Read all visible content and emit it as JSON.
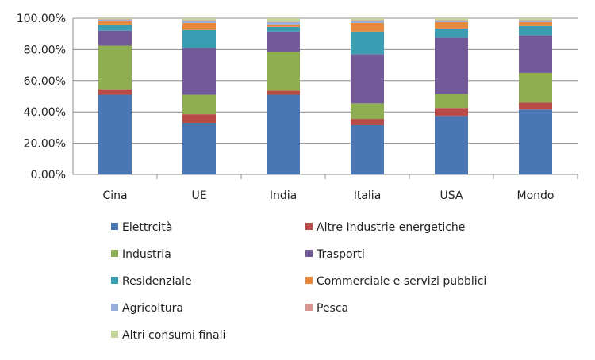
{
  "chart_data": {
    "type": "bar",
    "stacked": true,
    "title": "",
    "xlabel": "",
    "ylabel": "",
    "ylim": [
      0,
      100
    ],
    "y_ticks": [
      "0.00%",
      "20.00%",
      "40.00%",
      "60.00%",
      "80.00%",
      "100.00%"
    ],
    "grid": true,
    "legend_position": "bottom",
    "categories": [
      "Cina",
      "UE",
      "India",
      "Italia",
      "USA",
      "Mondo"
    ],
    "series": [
      {
        "name": "Elettrcità",
        "color": "#4a76b3",
        "values": [
          51,
          33,
          51,
          31.5,
          37.5,
          41.5
        ]
      },
      {
        "name": "Altre Industrie energetiche",
        "color": "#b84a47",
        "values": [
          3.5,
          5.5,
          2.5,
          4,
          5,
          4.5
        ]
      },
      {
        "name": "Industria",
        "color": "#8fae52",
        "values": [
          28,
          12.5,
          25,
          10,
          9,
          19
        ]
      },
      {
        "name": "Trasporti",
        "color": "#725a98",
        "values": [
          9.5,
          30,
          13,
          31.5,
          36,
          24
        ]
      },
      {
        "name": "Residenziale",
        "color": "#3b9db1",
        "values": [
          4,
          11.5,
          3,
          14.5,
          6,
          6
        ]
      },
      {
        "name": "Commerciale e servizi pubblici",
        "color": "#e9893e",
        "values": [
          2,
          4.5,
          1.5,
          5.5,
          4,
          2.5
        ]
      },
      {
        "name": "Agricoltura",
        "color": "#98aedb",
        "values": [
          1,
          1.5,
          1.5,
          1.5,
          1,
          1
        ]
      },
      {
        "name": "Pesca",
        "color": "#d99794",
        "values": [
          0.3,
          0.3,
          0.2,
          0.3,
          0.3,
          0.3
        ]
      },
      {
        "name": "Altri consumi finali",
        "color": "#c3d69b",
        "values": [
          0.7,
          1.2,
          2.3,
          1.2,
          1.2,
          1.2
        ]
      }
    ]
  }
}
